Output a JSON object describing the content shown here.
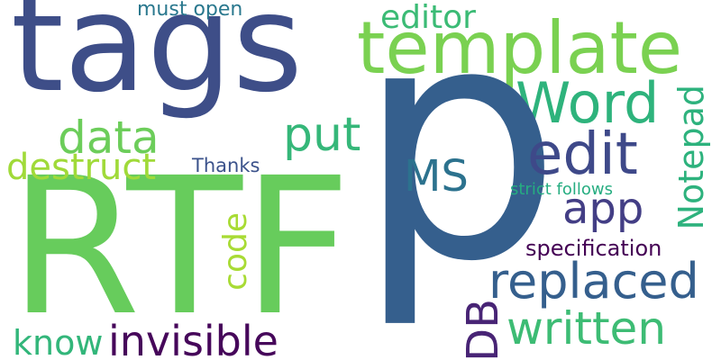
{
  "words": {
    "tags": {
      "text": "tags",
      "color": "#3e4e88"
    },
    "template": {
      "text": "template",
      "color": "#7ad151"
    },
    "word": {
      "text": "Word",
      "color": "#2eb37c"
    },
    "p": {
      "text": "p",
      "color": "#355f8d"
    },
    "rtf": {
      "text": "RTF",
      "color": "#67cc5c"
    },
    "data": {
      "text": "data",
      "color": "#6ccd5a"
    },
    "put": {
      "text": "put",
      "color": "#35b779"
    },
    "edit": {
      "text": "edit",
      "color": "#3e4989"
    },
    "ms": {
      "text": "MS",
      "color": "#2c728e"
    },
    "destruct": {
      "text": "destruct",
      "color": "#a0da39"
    },
    "thanks": {
      "text": "Thanks",
      "color": "#3b528b"
    },
    "editor": {
      "text": "editor",
      "color": "#3bbb75"
    },
    "must_open": {
      "text": "must open",
      "color": "#2a788e"
    },
    "notepad": {
      "text": "Notepad",
      "color": "#2db27d"
    },
    "strict_follows": {
      "text": "strict follows",
      "color": "#26ad81"
    },
    "app": {
      "text": "app",
      "color": "#433e85"
    },
    "code": {
      "text": "code",
      "color": "#a8db34"
    },
    "specification": {
      "text": "specification",
      "color": "#440154"
    },
    "replaced": {
      "text": "replaced",
      "color": "#355f8d"
    },
    "db": {
      "text": "DB",
      "color": "#482475"
    },
    "written": {
      "text": "written",
      "color": "#3dbc74"
    },
    "know": {
      "text": "know",
      "color": "#32b67a"
    },
    "invisible": {
      "text": "invisible",
      "color": "#46075a"
    }
  }
}
